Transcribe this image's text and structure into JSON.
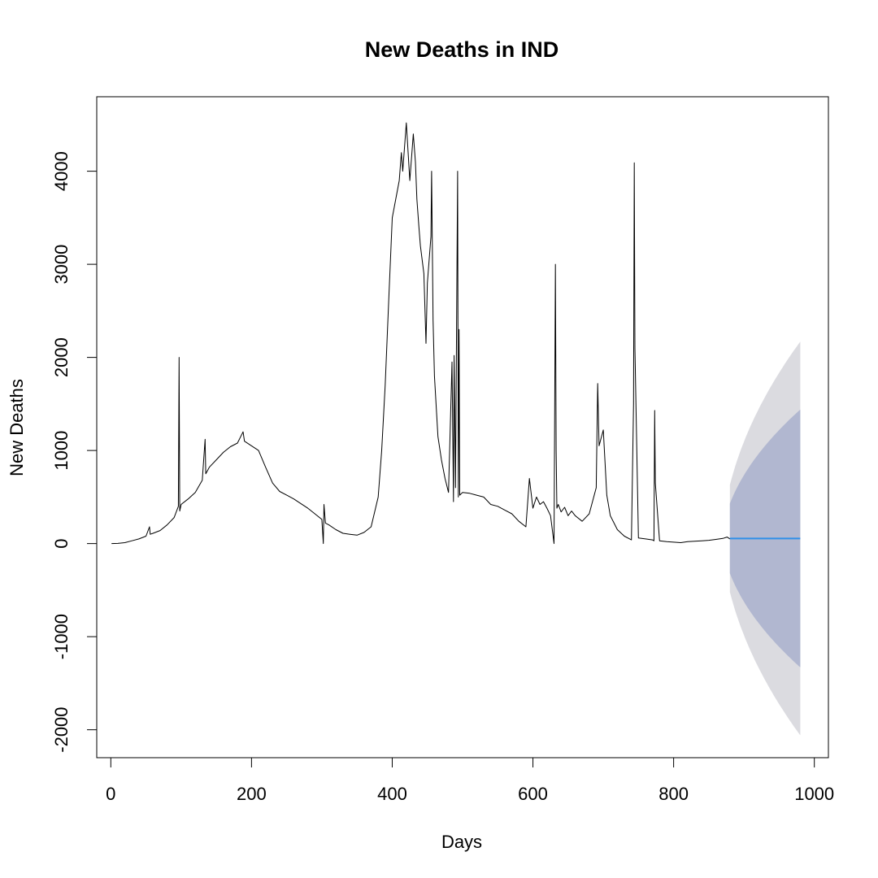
{
  "chart_data": {
    "type": "line",
    "title": "New Deaths in IND",
    "xlabel": "Days",
    "ylabel": "New Deaths",
    "xlim": [
      -20,
      1020
    ],
    "ylim": [
      -2300,
      4800
    ],
    "x_ticks": [
      0,
      200,
      400,
      600,
      800,
      1000
    ],
    "y_ticks": [
      -2000,
      -1000,
      0,
      1000,
      2000,
      3000,
      4000
    ],
    "grid": false,
    "legend": "none",
    "colors": {
      "observed": "#000000",
      "forecast_mean": "#2f8fe8",
      "band_80": "#b1b7d0",
      "band_95": "#dbdbe0"
    },
    "series": [
      {
        "role": "observed",
        "x": [
          1,
          10,
          20,
          30,
          40,
          50,
          55,
          56,
          60,
          70,
          80,
          90,
          96,
          97,
          98,
          100,
          110,
          120,
          130,
          134,
          135,
          140,
          150,
          160,
          170,
          180,
          188,
          190,
          200,
          210,
          220,
          230,
          240,
          250,
          260,
          270,
          280,
          290,
          300,
          302,
          303,
          305,
          310,
          320,
          330,
          340,
          350,
          360,
          370,
          380,
          385,
          390,
          395,
          400,
          405,
          410,
          413,
          415,
          420,
          425,
          430,
          433,
          435,
          438,
          440,
          445,
          448,
          450,
          455,
          456,
          458,
          460,
          465,
          470,
          475,
          480,
          485,
          487,
          488,
          490,
          493,
          494,
          495,
          496,
          500,
          510,
          520,
          530,
          540,
          550,
          560,
          570,
          580,
          590,
          595,
          600,
          605,
          610,
          615,
          620,
          625,
          630,
          632,
          633,
          634,
          636,
          640,
          645,
          650,
          655,
          660,
          670,
          680,
          690,
          692,
          694,
          700,
          705,
          710,
          720,
          730,
          740,
          743,
          744,
          745,
          750,
          760,
          770,
          772,
          773,
          774,
          780,
          790,
          800,
          810,
          820,
          830,
          840,
          850,
          860,
          870,
          876,
          880
        ],
        "y": [
          0,
          2,
          10,
          30,
          50,
          80,
          180,
          100,
          110,
          140,
          200,
          280,
          400,
          2000,
          350,
          420,
          480,
          550,
          680,
          1120,
          750,
          820,
          900,
          980,
          1040,
          1080,
          1200,
          1100,
          1050,
          1000,
          820,
          650,
          560,
          520,
          480,
          430,
          380,
          320,
          260,
          0,
          420,
          220,
          200,
          150,
          110,
          100,
          90,
          120,
          180,
          500,
          1000,
          1700,
          2600,
          3500,
          3700,
          3900,
          4200,
          4000,
          4520,
          3900,
          4400,
          4100,
          3700,
          3400,
          3200,
          2900,
          2150,
          2800,
          3300,
          4000,
          2400,
          1800,
          1150,
          900,
          700,
          550,
          1950,
          450,
          2020,
          600,
          4000,
          500,
          2300,
          520,
          550,
          540,
          520,
          500,
          420,
          400,
          360,
          320,
          240,
          180,
          700,
          380,
          500,
          420,
          450,
          380,
          300,
          0,
          3000,
          1000,
          380,
          420,
          340,
          390,
          300,
          350,
          300,
          240,
          320,
          600,
          1720,
          1050,
          1220,
          520,
          300,
          150,
          80,
          40,
          1500,
          4090,
          2100,
          60,
          50,
          40,
          30,
          1430,
          650,
          30,
          20,
          15,
          10,
          20,
          25,
          30,
          35,
          45,
          55,
          70,
          50
        ]
      },
      {
        "role": "forecast",
        "x": [
          880,
          980
        ],
        "mean": [
          55,
          55
        ],
        "lo80": [
          -320,
          -1330
        ],
        "hi80": [
          430,
          1440
        ],
        "lo95": [
          -520,
          -2060
        ],
        "hi95": [
          630,
          2170
        ]
      }
    ]
  }
}
